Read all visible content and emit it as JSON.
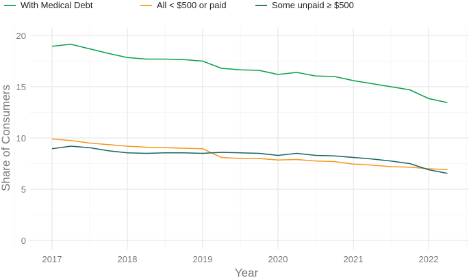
{
  "chart_data": {
    "type": "line",
    "xlabel": "Year",
    "ylabel": "Share of Consumers",
    "xlim": [
      2016.8,
      2022.5
    ],
    "ylim": [
      0,
      21
    ],
    "xticks": [
      "2017",
      "2018",
      "2019",
      "2020",
      "2021",
      "2022"
    ],
    "yticks": [
      "0",
      "5",
      "10",
      "15",
      "20"
    ],
    "grid": true,
    "legend_position": "top",
    "x": [
      2017,
      2017.25,
      2017.5,
      2017.75,
      2018,
      2018.25,
      2018.5,
      2018.75,
      2019,
      2019.25,
      2019.5,
      2019.75,
      2020,
      2020.25,
      2020.5,
      2020.75,
      2021,
      2021.25,
      2021.5,
      2021.75,
      2022,
      2022.25
    ],
    "series": [
      {
        "name": "With Medical Debt",
        "color": "#0aa04a",
        "values": [
          18.95,
          19.15,
          18.7,
          18.25,
          17.85,
          17.7,
          17.7,
          17.65,
          17.5,
          16.8,
          16.65,
          16.6,
          16.2,
          16.4,
          16.05,
          16.0,
          15.6,
          15.3,
          15.0,
          14.7,
          13.85,
          13.45
        ]
      },
      {
        "name": "All < $500 or paid",
        "color": "#f7961e",
        "values": [
          9.9,
          9.75,
          9.5,
          9.35,
          9.2,
          9.1,
          9.05,
          9.0,
          8.95,
          8.1,
          8.0,
          8.0,
          7.85,
          7.9,
          7.75,
          7.7,
          7.45,
          7.35,
          7.2,
          7.15,
          7.0,
          6.9
        ]
      },
      {
        "name": "Some unpaid ≥ $500",
        "color": "#17655f",
        "values": [
          8.95,
          9.2,
          9.05,
          8.75,
          8.55,
          8.5,
          8.55,
          8.55,
          8.5,
          8.6,
          8.55,
          8.5,
          8.3,
          8.5,
          8.3,
          8.25,
          8.1,
          7.95,
          7.75,
          7.5,
          6.9,
          6.55
        ]
      }
    ]
  }
}
